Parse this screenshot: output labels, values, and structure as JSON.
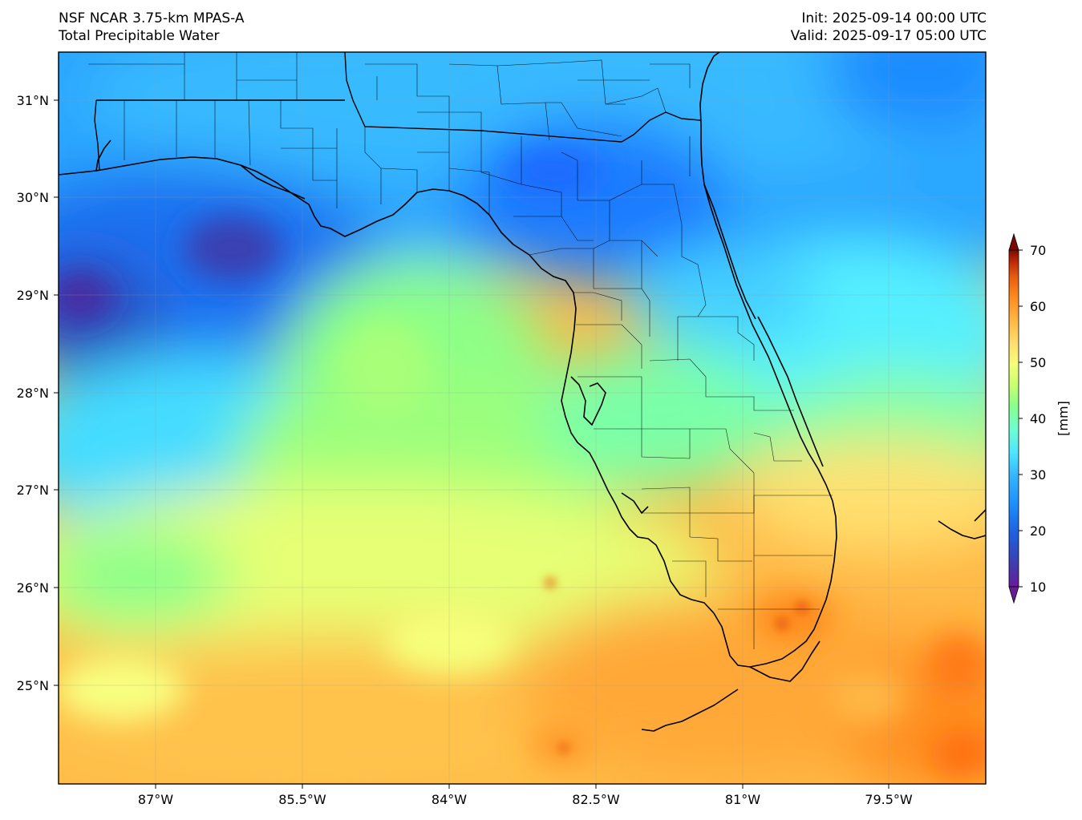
{
  "header": {
    "model": "NSF NCAR 3.75-km MPAS-A",
    "field": "Total Precipitable Water",
    "init": "Init: 2025-09-14 00:00 UTC",
    "valid": "Valid: 2025-09-17 05:00 UTC"
  },
  "map": {
    "lat_labels": [
      "31°N",
      "30°N",
      "29°N",
      "28°N",
      "27°N",
      "26°N",
      "25°N"
    ],
    "lon_labels": [
      "87°W",
      "85.5°W",
      "84°W",
      "82.5°W",
      "81°W",
      "79.5°W"
    ],
    "lat_values": [
      31,
      30,
      29,
      28,
      27,
      26,
      25
    ],
    "lon_values": [
      -87,
      -85.5,
      -84,
      -82.5,
      -81,
      -79.5
    ],
    "extent": {
      "lon_min": -88.0,
      "lon_max": -78.5,
      "lat_min": 24.0,
      "lat_max": 31.5
    }
  },
  "colorbar": {
    "label": "[mm]",
    "ticks": [
      "70",
      "60",
      "50",
      "40",
      "30",
      "20",
      "10"
    ],
    "tick_values": [
      70,
      60,
      50,
      40,
      30,
      20,
      10
    ],
    "range": [
      7,
      73
    ],
    "colormap": [
      "#6a1b9a",
      "#3b3fb0",
      "#1f5fe0",
      "#1a8cff",
      "#35b6ff",
      "#4fe6ff",
      "#6effd0",
      "#8aff8a",
      "#c8ff70",
      "#f4ff78",
      "#ffe070",
      "#ffb845",
      "#ff8a1e",
      "#e85d0e",
      "#b82405",
      "#7a0a02"
    ]
  },
  "colors": {
    "ocean_dry": "#1f5fe0",
    "moist": "#ffc050",
    "coast": "#000000",
    "grid": "#9a9a9a"
  }
}
